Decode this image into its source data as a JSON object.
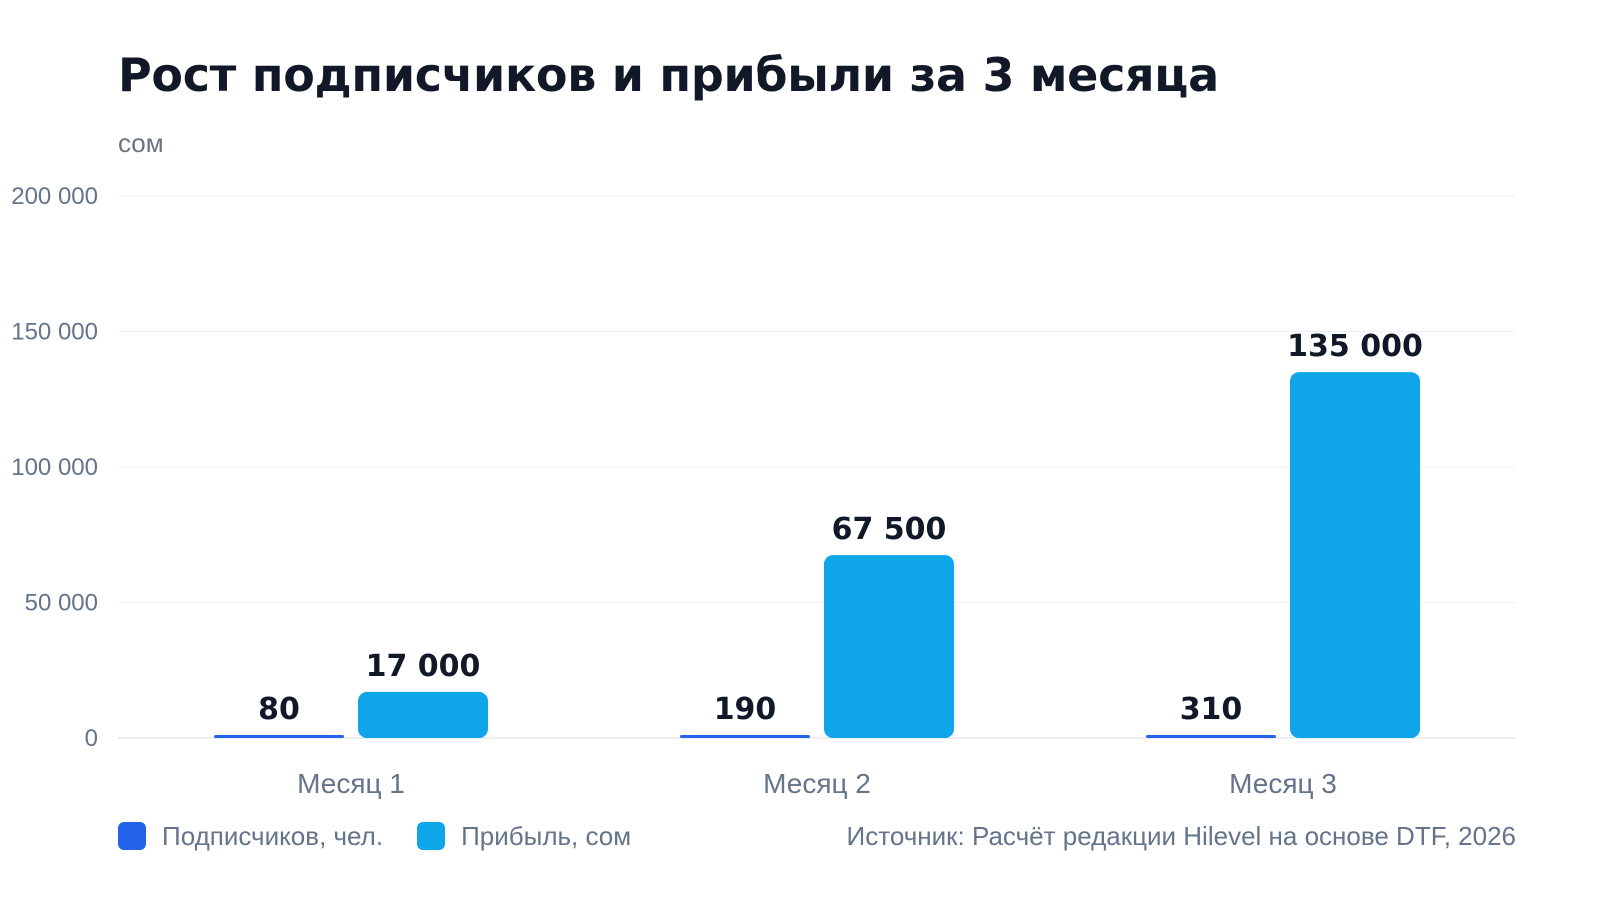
{
  "chart_data": {
    "type": "bar",
    "title": "Рост подписчиков и прибыли за 3 месяца",
    "ylabel": "сом",
    "ylim": [
      0,
      200000
    ],
    "yticks": [
      0,
      50000,
      100000,
      150000,
      200000
    ],
    "ytick_labels": [
      "0",
      "50 000",
      "100 000",
      "150 000",
      "200 000"
    ],
    "grid": true,
    "categories": [
      "Месяц 1",
      "Месяц 2",
      "Месяц 3"
    ],
    "series": [
      {
        "name": "Подписчиков, чел.",
        "color": "#2563eb",
        "values": [
          80,
          190,
          310
        ],
        "labels": [
          "80",
          "190",
          "310"
        ]
      },
      {
        "name": "Прибыль, сом",
        "color": "#0ea5e9",
        "values": [
          17000,
          67500,
          135000
        ],
        "labels": [
          "17 000",
          "67 500",
          "135 000"
        ]
      }
    ],
    "legend_placement": "bottom-left",
    "source": "Источник: Расчёт редакции Hilevel на основе DTF, 2026"
  }
}
